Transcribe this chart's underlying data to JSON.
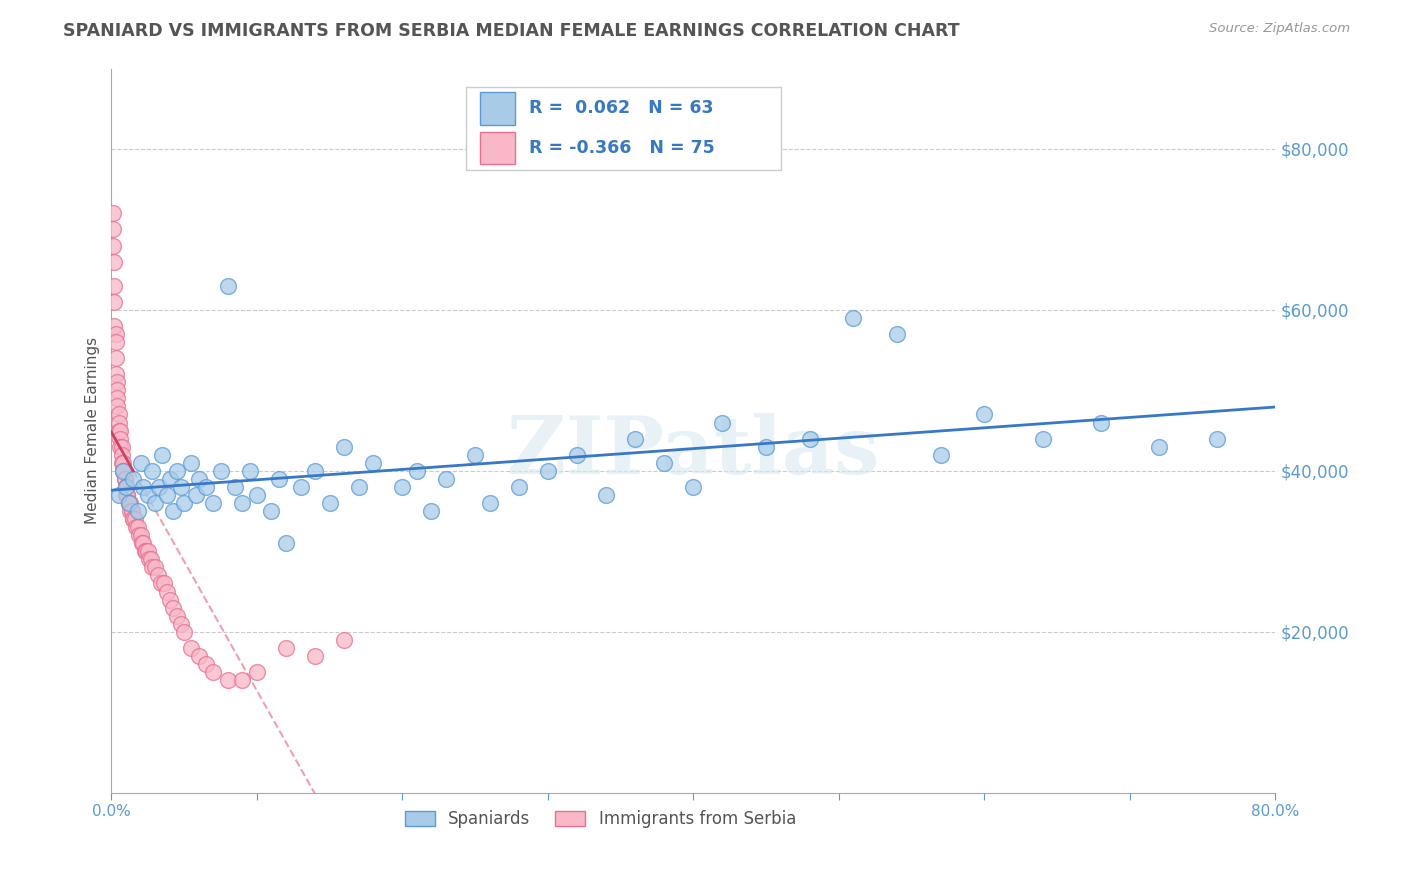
{
  "title": "SPANIARD VS IMMIGRANTS FROM SERBIA MEDIAN FEMALE EARNINGS CORRELATION CHART",
  "source": "Source: ZipAtlas.com",
  "ylabel": "Median Female Earnings",
  "xlim": [
    0.0,
    0.8
  ],
  "ylim": [
    0,
    90000
  ],
  "yticks": [
    20000,
    40000,
    60000,
    80000
  ],
  "ytick_labels": [
    "$20,000",
    "$40,000",
    "$60,000",
    "$80,000"
  ],
  "xticks": [
    0.0,
    0.1,
    0.2,
    0.3,
    0.4,
    0.5,
    0.6,
    0.7,
    0.8
  ],
  "xtick_labels": [
    "0.0%",
    "",
    "",
    "",
    "",
    "",
    "",
    "",
    "80.0%"
  ],
  "r_blue": "0.062",
  "n_blue": "63",
  "r_pink": "-0.366",
  "n_pink": "75",
  "blue_scatter_color": "#a8cce8",
  "blue_edge_color": "#5b9bd5",
  "pink_scatter_color": "#f9b8c8",
  "pink_edge_color": "#e87090",
  "blue_line_color": "#3878c8",
  "pink_line_color": "#d04060",
  "pink_dash_color": "#f0a0b0",
  "grid_color": "#cccccc",
  "axis_color": "#aaaaaa",
  "title_color": "#555555",
  "tick_color": "#5b9bd5",
  "watermark": "ZIPatlas",
  "legend_label_blue": "Spaniards",
  "legend_label_pink": "Immigrants from Serbia",
  "spaniards_x": [
    0.005,
    0.008,
    0.01,
    0.012,
    0.015,
    0.018,
    0.02,
    0.022,
    0.025,
    0.028,
    0.03,
    0.033,
    0.035,
    0.038,
    0.04,
    0.042,
    0.045,
    0.048,
    0.05,
    0.055,
    0.058,
    0.06,
    0.065,
    0.07,
    0.075,
    0.08,
    0.085,
    0.09,
    0.095,
    0.1,
    0.11,
    0.115,
    0.12,
    0.13,
    0.14,
    0.15,
    0.16,
    0.17,
    0.18,
    0.2,
    0.21,
    0.22,
    0.23,
    0.25,
    0.26,
    0.28,
    0.3,
    0.32,
    0.34,
    0.36,
    0.38,
    0.4,
    0.42,
    0.45,
    0.48,
    0.51,
    0.54,
    0.57,
    0.6,
    0.64,
    0.68,
    0.72,
    0.76
  ],
  "spaniards_y": [
    37000,
    40000,
    38000,
    36000,
    39000,
    35000,
    41000,
    38000,
    37000,
    40000,
    36000,
    38000,
    42000,
    37000,
    39000,
    35000,
    40000,
    38000,
    36000,
    41000,
    37000,
    39000,
    38000,
    36000,
    40000,
    63000,
    38000,
    36000,
    40000,
    37000,
    35000,
    39000,
    31000,
    38000,
    40000,
    36000,
    43000,
    38000,
    41000,
    38000,
    40000,
    35000,
    39000,
    42000,
    36000,
    38000,
    40000,
    42000,
    37000,
    44000,
    41000,
    38000,
    46000,
    43000,
    44000,
    59000,
    57000,
    42000,
    47000,
    44000,
    46000,
    43000,
    44000
  ],
  "serbia_x": [
    0.001,
    0.001,
    0.001,
    0.002,
    0.002,
    0.002,
    0.002,
    0.003,
    0.003,
    0.003,
    0.003,
    0.004,
    0.004,
    0.004,
    0.004,
    0.005,
    0.005,
    0.005,
    0.006,
    0.006,
    0.006,
    0.007,
    0.007,
    0.007,
    0.008,
    0.008,
    0.008,
    0.009,
    0.009,
    0.01,
    0.01,
    0.01,
    0.011,
    0.011,
    0.012,
    0.012,
    0.013,
    0.013,
    0.014,
    0.014,
    0.015,
    0.015,
    0.016,
    0.017,
    0.018,
    0.019,
    0.02,
    0.021,
    0.022,
    0.023,
    0.024,
    0.025,
    0.026,
    0.027,
    0.028,
    0.03,
    0.032,
    0.034,
    0.036,
    0.038,
    0.04,
    0.042,
    0.045,
    0.048,
    0.05,
    0.055,
    0.06,
    0.065,
    0.07,
    0.08,
    0.09,
    0.1,
    0.12,
    0.14,
    0.16
  ],
  "serbia_y": [
    72000,
    70000,
    68000,
    66000,
    63000,
    61000,
    58000,
    57000,
    56000,
    54000,
    52000,
    51000,
    50000,
    49000,
    48000,
    47000,
    46000,
    45000,
    45000,
    44000,
    43000,
    43000,
    42000,
    41000,
    41000,
    40000,
    40000,
    39000,
    39000,
    38000,
    38000,
    37000,
    37000,
    37000,
    36000,
    36000,
    36000,
    35000,
    35000,
    35000,
    34000,
    34000,
    34000,
    33000,
    33000,
    32000,
    32000,
    31000,
    31000,
    30000,
    30000,
    30000,
    29000,
    29000,
    28000,
    28000,
    27000,
    26000,
    26000,
    25000,
    24000,
    23000,
    22000,
    21000,
    20000,
    18000,
    17000,
    16000,
    15000,
    14000,
    14000,
    15000,
    18000,
    17000,
    19000
  ]
}
